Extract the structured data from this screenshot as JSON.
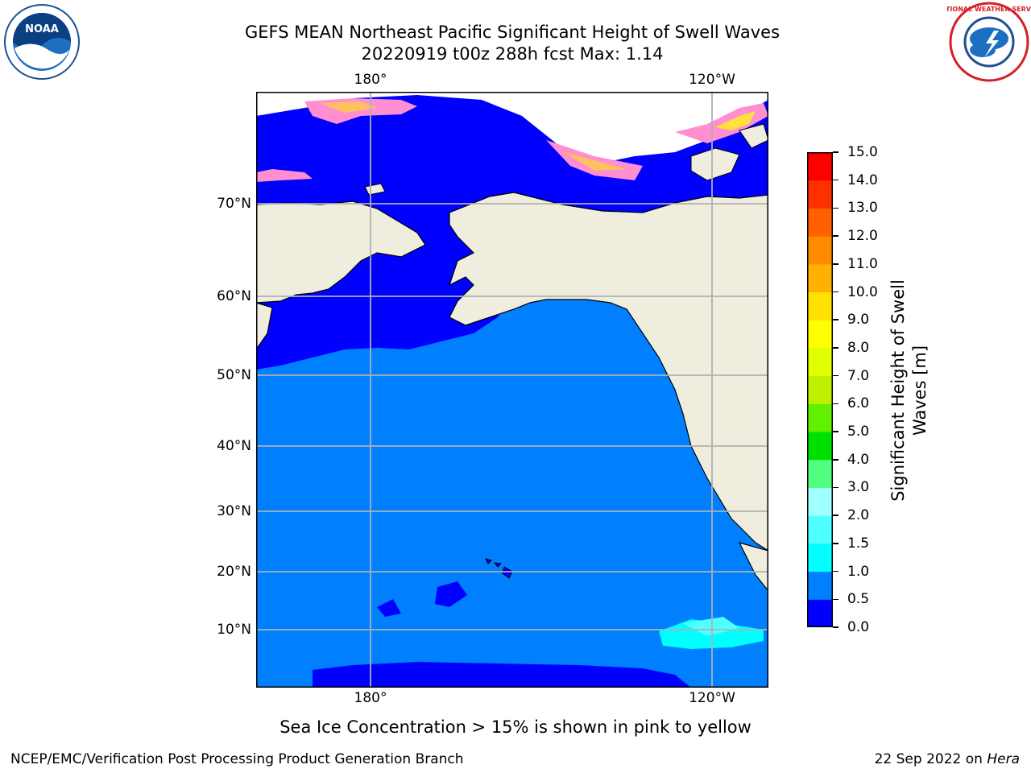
{
  "title_line1": "GEFS MEAN Northeast Pacific Significant Height of Swell Waves",
  "title_line2": "20220919 t00z 288h fcst   Max: 1.14",
  "logos": {
    "left": "noaa-logo",
    "left_text": "NOAA",
    "right": "nws-logo",
    "right_text": "NATIONAL WEATHER SERVICE"
  },
  "map": {
    "lon_labels_top": [
      "180°",
      "120°W"
    ],
    "lon_labels_bottom": [
      "180°",
      "120°W"
    ],
    "lat_labels": [
      "70°N",
      "60°N",
      "50°N",
      "40°N",
      "30°N",
      "20°N",
      "10°N"
    ],
    "land_color": "#efedde",
    "grid_color": "#b0b0b0"
  },
  "colorbar": {
    "label_line1": "Significant Height of Swell",
    "label_line2": "Waves [m]",
    "ticks": [
      "0.0",
      "0.5",
      "1.0",
      "1.5",
      "2.0",
      "3.0",
      "4.0",
      "5.0",
      "6.0",
      "7.0",
      "8.0",
      "9.0",
      "10.0",
      "11.0",
      "12.0",
      "13.0",
      "14.0",
      "15.0"
    ],
    "colors": [
      "#0000ff",
      "#0080ff",
      "#00ffff",
      "#50ffff",
      "#a0ffff",
      "#50ff80",
      "#00e000",
      "#60f000",
      "#c0f000",
      "#e0ff00",
      "#ffff00",
      "#ffe000",
      "#ffb000",
      "#ff8c00",
      "#ff6000",
      "#ff3000",
      "#ff0000"
    ]
  },
  "note": "Sea Ice Concentration > 15% is shown in pink to yellow",
  "footer_left": "NCEP/EMC/Verification Post Processing Product Generation Branch",
  "footer_date": "22 Sep 2022 on ",
  "footer_machine": "Hera"
}
